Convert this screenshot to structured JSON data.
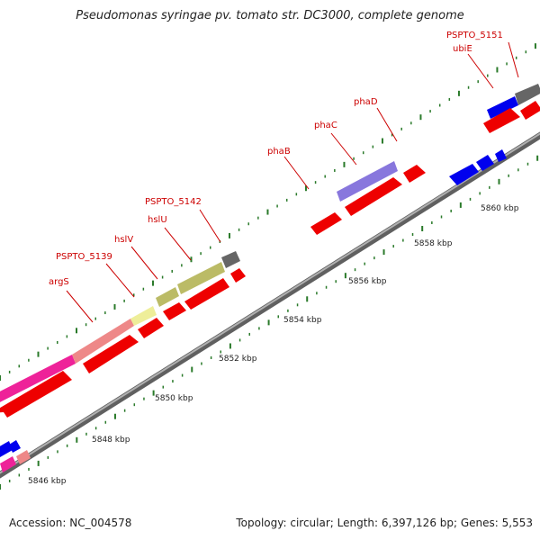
{
  "title": "Pseudomonas syringae pv. tomato str. DC3000, complete genome",
  "footer": {
    "accession_text": "Accession: NC_004578",
    "topology_text": "Topology: circular; Length: 6,397,126 bp; Genes: 5,553"
  },
  "colors": {
    "backbone": "#8a8a8a",
    "tick": "#2a7a2a",
    "label": "#cc0000",
    "leader": "#cc0000"
  },
  "kbp_labels": [
    "5846 kbp",
    "5848 kbp",
    "5850 kbp",
    "5852 kbp",
    "5854 kbp",
    "5856 kbp",
    "5858 kbp",
    "5860 kbp"
  ],
  "gene_labels": [
    "argS",
    "PSPTO_5139",
    "hslV",
    "hslU",
    "PSPTO_5142",
    "phaB",
    "phaC",
    "phaD",
    "ubiE",
    "PSPTO_5151"
  ],
  "features": [
    {
      "track": "cog",
      "color": "#ee2299"
    },
    {
      "track": "cog",
      "color": "#ee8888"
    },
    {
      "track": "cog",
      "color": "#eeee99"
    },
    {
      "track": "cog",
      "color": "#bbbb66"
    },
    {
      "track": "cog",
      "color": "#bbbb66"
    },
    {
      "track": "cog",
      "color": "#666666"
    },
    {
      "track": "cog",
      "color": "#8877dd"
    },
    {
      "track": "cog",
      "color": "#0000ee"
    },
    {
      "track": "cog",
      "color": "#666666"
    },
    {
      "track": "cog",
      "color": "#ee2299"
    },
    {
      "track": "cog",
      "color": "#ee8888"
    },
    {
      "track": "cog",
      "color": "#0000ee"
    },
    {
      "track": "forward",
      "color": "#ee0000"
    },
    {
      "track": "reverse",
      "color": "#0000ee"
    }
  ]
}
